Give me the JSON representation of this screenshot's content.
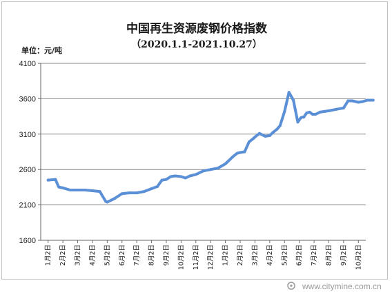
{
  "chart_data": {
    "type": "line",
    "title": "中国再生资源废钢价格指数",
    "subtitle": "（2020.1.1-2021.10.27）",
    "ylabel": "单位：元/吨",
    "ylim": [
      1600,
      4100
    ],
    "yticks": [
      1600,
      2100,
      2600,
      3100,
      3600,
      4100
    ],
    "grid": "horizontal",
    "categories": [
      "1月2日",
      "2月2日",
      "3月2日",
      "4月2日",
      "5月2日",
      "6月2日",
      "7月2日",
      "8月2日",
      "9月2日",
      "10月2日",
      "11月2日",
      "12月2日",
      "1月2日",
      "2月2日",
      "3月2日",
      "4月2日",
      "5月2日",
      "6月2日",
      "7月2日",
      "8月2日",
      "9月2日",
      "10月2日"
    ],
    "series": [
      {
        "color": "#5b8fd6",
        "x": [
          0,
          0.5,
          0.7,
          0.75,
          1,
          1.5,
          2,
          2.5,
          3,
          3.5,
          3.9,
          4.0,
          4.1,
          4.3,
          4.5,
          5,
          5.5,
          6,
          6.5,
          7,
          7.4,
          7.7,
          8,
          8.3,
          8.6,
          9,
          9.3,
          9.6,
          10,
          10.5,
          11,
          11.5,
          12,
          12.5,
          12.8,
          13,
          13.3,
          13.6,
          13.9,
          14,
          14.3,
          14.7,
          15.0,
          15.2,
          15.5,
          15.7,
          16,
          16.3,
          16.6,
          16.9,
          17.1,
          17.2,
          17.3,
          17.5,
          17.7,
          17.9,
          18.1,
          18.4,
          18.7,
          19,
          19.5,
          20,
          20.3,
          20.6,
          21,
          21.3,
          21.6,
          22
        ],
        "values": [
          2450,
          2460,
          2360,
          2350,
          2340,
          2310,
          2310,
          2310,
          2300,
          2290,
          2150,
          2140,
          2150,
          2170,
          2190,
          2260,
          2270,
          2270,
          2290,
          2330,
          2360,
          2450,
          2460,
          2500,
          2510,
          2500,
          2480,
          2510,
          2530,
          2580,
          2600,
          2620,
          2680,
          2780,
          2830,
          2840,
          2850,
          2990,
          3040,
          3060,
          3110,
          3070,
          3080,
          3120,
          3170,
          3220,
          3420,
          3690,
          3580,
          3270,
          3330,
          3340,
          3340,
          3400,
          3410,
          3380,
          3380,
          3410,
          3420,
          3430,
          3450,
          3470,
          3570,
          3570,
          3550,
          3560,
          3580,
          3580
        ]
      }
    ]
  },
  "watermark": "www.citymine.com.cn"
}
